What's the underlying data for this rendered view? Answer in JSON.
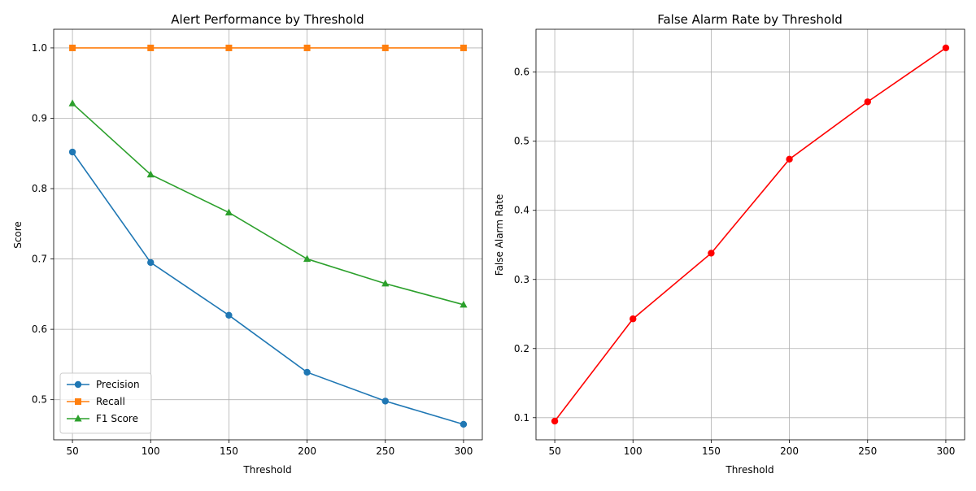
{
  "chart_data": [
    {
      "type": "line",
      "title": "Alert Performance by Threshold",
      "xlabel": "Threshold",
      "ylabel": "Score",
      "x": [
        50,
        100,
        150,
        200,
        250,
        300
      ],
      "xlim": [
        38,
        312
      ],
      "ylim": [
        0.443,
        1.0265
      ],
      "xticks": [
        50,
        100,
        150,
        200,
        250,
        300
      ],
      "yticks": [
        0.5,
        0.6,
        0.7,
        0.8,
        0.9,
        1.0
      ],
      "ytick_labels": [
        "0.5",
        "0.6",
        "0.7",
        "0.8",
        "0.9",
        "1.0"
      ],
      "grid": true,
      "legend": "lower-left",
      "series": [
        {
          "name": "Precision",
          "color": "#1f77b4",
          "marker": "circle",
          "values": [
            0.852,
            0.695,
            0.62,
            0.539,
            0.498,
            0.465
          ]
        },
        {
          "name": "Recall",
          "color": "#ff7f0e",
          "marker": "square",
          "values": [
            1.0,
            1.0,
            1.0,
            1.0,
            1.0,
            1.0
          ]
        },
        {
          "name": "F1 Score",
          "color": "#2ca02c",
          "marker": "triangle",
          "values": [
            0.921,
            0.82,
            0.766,
            0.7,
            0.665,
            0.635
          ]
        }
      ]
    },
    {
      "type": "line",
      "title": "False Alarm Rate by Threshold",
      "xlabel": "Threshold",
      "ylabel": "False Alarm Rate",
      "x": [
        50,
        100,
        150,
        200,
        250,
        300
      ],
      "xlim": [
        38,
        312
      ],
      "ylim": [
        0.068,
        0.662
      ],
      "xticks": [
        50,
        100,
        150,
        200,
        250,
        300
      ],
      "yticks": [
        0.1,
        0.2,
        0.3,
        0.4,
        0.5,
        0.6
      ],
      "ytick_labels": [
        "0.1",
        "0.2",
        "0.3",
        "0.4",
        "0.5",
        "0.6"
      ],
      "grid": true,
      "legend": "none",
      "series": [
        {
          "color": "#ff0000",
          "marker": "circle",
          "values": [
            0.095,
            0.243,
            0.338,
            0.474,
            0.557,
            0.635
          ]
        }
      ]
    }
  ]
}
